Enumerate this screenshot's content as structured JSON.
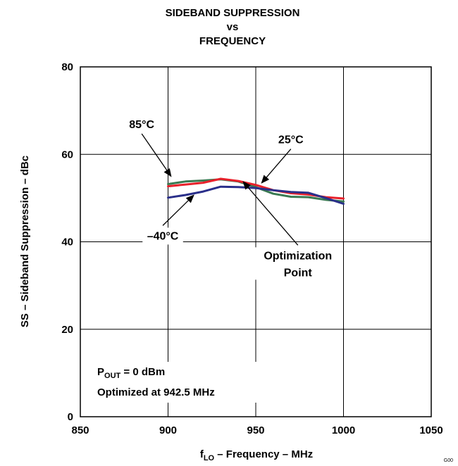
{
  "chart_data": {
    "type": "line",
    "title_lines": [
      "SIDEBAND SUPPRESSION",
      "vs",
      "FREQUENCY"
    ],
    "xlabel_main": "f",
    "xlabel_sub": "LO",
    "xlabel_rest": " – Frequency – MHz",
    "ylabel": "SS – Sideband Suppression – dBc",
    "xlim": [
      850,
      1050
    ],
    "ylim": [
      0,
      80
    ],
    "x_ticks": [
      850,
      900,
      950,
      1000,
      1050
    ],
    "y_ticks": [
      0,
      20,
      40,
      60,
      80
    ],
    "grid": true,
    "series": [
      {
        "name": "85°C",
        "color": "#3a7a52",
        "x": [
          900,
          910,
          920,
          930,
          940,
          950,
          960,
          970,
          980,
          990,
          1000
        ],
        "y": [
          53.2,
          53.8,
          54.0,
          54.3,
          53.8,
          52.5,
          51.0,
          50.3,
          50.2,
          49.6,
          49.2
        ]
      },
      {
        "name": "25°C",
        "color": "#e8202a",
        "x": [
          900,
          910,
          920,
          930,
          940,
          950,
          960,
          970,
          980,
          990,
          1000
        ],
        "y": [
          52.7,
          53.1,
          53.5,
          54.4,
          53.9,
          53.0,
          51.8,
          51.1,
          50.8,
          50.2,
          49.9
        ]
      },
      {
        "name": "–40°C",
        "color": "#2a2f8a",
        "x": [
          900,
          910,
          920,
          930,
          940,
          950,
          960,
          970,
          980,
          990,
          1000
        ],
        "y": [
          50.1,
          50.7,
          51.5,
          52.6,
          52.5,
          52.3,
          51.8,
          51.4,
          51.2,
          50.0,
          48.7
        ]
      }
    ],
    "annotations": [
      {
        "text": "85°C",
        "tx": 885,
        "ty": 66,
        "ax": 902,
        "ay": 54.8
      },
      {
        "text": "25°C",
        "tx": 970,
        "ty": 62.5,
        "ax": 953,
        "ay": 53.3
      },
      {
        "text": "–40°C",
        "tx": 897,
        "ty": 40.5,
        "ax": 915,
        "ay": 50.8
      },
      {
        "text": "Optimization",
        "text2": "Point",
        "tx": 974,
        "ty": 36,
        "ax": 942.5,
        "ay": 53.9
      }
    ],
    "note_line1_main": "P",
    "note_line1_sub": "OUT",
    "note_line1_rest": " = 0 dBm",
    "note_line2": "Optimized at 942.5 MHz",
    "figure_code": "G00"
  }
}
